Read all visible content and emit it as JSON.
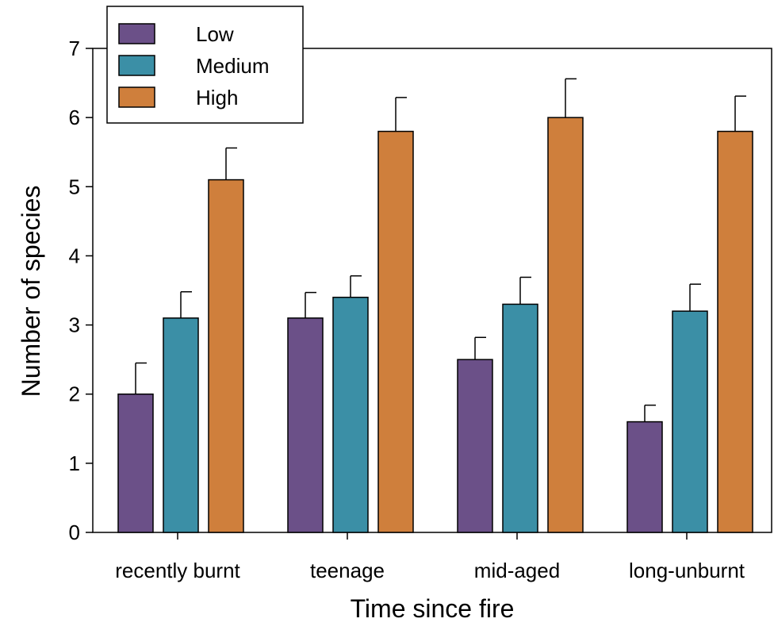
{
  "chart_data": {
    "type": "bar",
    "title": "",
    "xlabel": "Time since fire",
    "ylabel": "Number of species",
    "ylim": [
      0,
      7
    ],
    "yticks": [
      0,
      1,
      2,
      3,
      4,
      5,
      6,
      7
    ],
    "grid": false,
    "legend_position": "top-left",
    "categories": [
      "recently burnt",
      "teenage",
      "mid-aged",
      "long-unburnt"
    ],
    "series": [
      {
        "name": "Low",
        "color": "#6b5088",
        "values": [
          2.0,
          3.1,
          2.5,
          1.6
        ],
        "errors": [
          0.45,
          0.37,
          0.32,
          0.24
        ]
      },
      {
        "name": "Medium",
        "color": "#3b8fa6",
        "values": [
          3.1,
          3.4,
          3.3,
          3.2
        ],
        "errors": [
          0.38,
          0.31,
          0.39,
          0.39
        ]
      },
      {
        "name": "High",
        "color": "#cf7f3c",
        "values": [
          5.1,
          5.8,
          6.0,
          5.8
        ],
        "errors": [
          0.46,
          0.49,
          0.56,
          0.51
        ]
      }
    ]
  }
}
